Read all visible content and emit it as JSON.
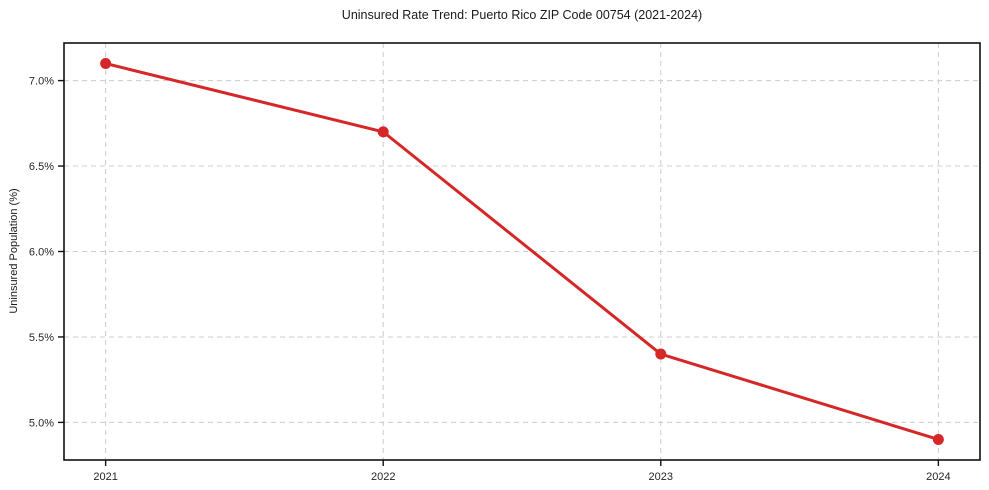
{
  "chart_data": {
    "type": "line",
    "title": "Uninsured Rate Trend: Puerto Rico ZIP Code 00754 (2021-2024)",
    "xlabel": "",
    "ylabel": "Uninsured Population (%)",
    "x": [
      2021,
      2022,
      2023,
      2024
    ],
    "values": [
      7.1,
      6.7,
      5.4,
      4.9
    ],
    "xticks": {
      "values": [
        2021,
        2022,
        2023,
        2024
      ],
      "labels": [
        "2021",
        "2022",
        "2023",
        "2024"
      ]
    },
    "yticks": {
      "values": [
        5.0,
        5.5,
        6.0,
        6.5,
        7.0
      ],
      "labels": [
        "5.0%",
        "5.5%",
        "6.0%",
        "6.5%",
        "7.0%"
      ]
    },
    "xlim": [
      2020.85,
      2024.15
    ],
    "ylim": [
      4.78,
      7.22
    ],
    "grid": true,
    "grid_style": "dashed",
    "legend_position": "none",
    "colors": {
      "line": "#d62728",
      "marker": "#d62728",
      "grid": "#cccccc",
      "spine": "#111111",
      "tick_label": "#262626",
      "background": "#ffffff"
    }
  }
}
